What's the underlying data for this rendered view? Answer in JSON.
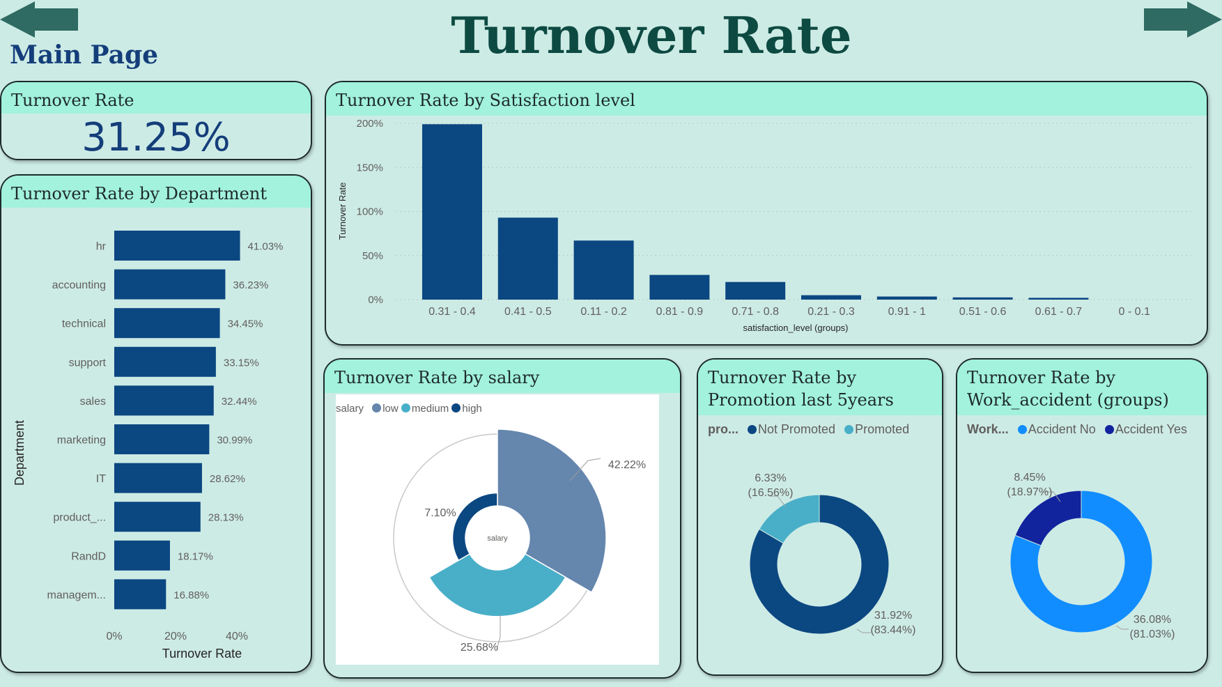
{
  "page": {
    "title": "Turnover Rate",
    "main_link": "Main Page"
  },
  "colors": {
    "background": "#cdebe5",
    "header": "#a2f2dd",
    "navy": "#0b4781",
    "title": "#0d4a42"
  },
  "nav": {
    "back_icon": "left-arrow-icon",
    "forward_icon": "right-arrow-icon"
  },
  "kpi": {
    "title": "Turnover Rate",
    "value": "31.25%"
  },
  "department": {
    "title": "Turnover Rate by Department",
    "chart_data": {
      "type": "bar",
      "orientation": "horizontal",
      "categories": [
        "hr",
        "accounting",
        "technical",
        "support",
        "sales",
        "marketing",
        "IT",
        "product_...",
        "RandD",
        "managem..."
      ],
      "values": [
        41.03,
        36.23,
        34.45,
        33.15,
        32.44,
        30.99,
        28.62,
        28.13,
        18.17,
        16.88
      ],
      "labels": [
        "41.03%",
        "36.23%",
        "34.45%",
        "33.15%",
        "32.44%",
        "30.99%",
        "28.62%",
        "28.13%",
        "18.17%",
        "16.88%"
      ],
      "xlabel": "Turnover Rate",
      "ylabel": "Department",
      "xticks": [
        "0%",
        "20%",
        "40%"
      ],
      "xlim": [
        0,
        45
      ],
      "color": "#0b4781"
    }
  },
  "satisfaction": {
    "title": "Turnover Rate by Satisfaction level",
    "chart_data": {
      "type": "bar",
      "categories": [
        "0.31 - 0.4",
        "0.41 - 0.5",
        "0.11 - 0.2",
        "0.81 - 0.9",
        "0.71 - 0.8",
        "0.21 - 0.3",
        "0.91 - 1",
        "0.51 - 0.6",
        "0.61 - 0.7",
        "0 - 0.1"
      ],
      "values": [
        199,
        93,
        67,
        28,
        20,
        5,
        3.5,
        2.5,
        2,
        0
      ],
      "xlabel": "satisfaction_level (groups)",
      "ylabel": "Turnover Rate",
      "yticks": [
        "200%",
        "150%",
        "100%",
        "50%",
        "0%"
      ],
      "ylim": [
        0,
        200
      ],
      "grid": true,
      "color": "#0b4781"
    }
  },
  "salary": {
    "title": "Turnover Rate by salary",
    "chart_data": {
      "type": "pie",
      "variant": "rose",
      "center_label": "salary",
      "legend_title": "salary",
      "legend_position": "top-left",
      "slices": [
        {
          "name": "low",
          "value": 42.22,
          "label": "42.22%",
          "color": "#6586ad"
        },
        {
          "name": "medium",
          "value": 25.68,
          "label": "25.68%",
          "color": "#49afc8"
        },
        {
          "name": "high",
          "value": 7.1,
          "label": "7.10%",
          "color": "#0b4781"
        }
      ]
    }
  },
  "promotion": {
    "title": "Turnover Rate by Promotion last 5years",
    "chart_data": {
      "type": "pie",
      "variant": "donut",
      "legend_title": "pro...",
      "legend_position": "top-left",
      "slices": [
        {
          "name": "Not Promoted",
          "value": 31.92,
          "label": "31.92%",
          "sub": "(83.44%)",
          "color": "#0b4781"
        },
        {
          "name": "Promoted",
          "value": 6.33,
          "label": "6.33%",
          "sub": "(16.56%)",
          "color": "#49afc8"
        }
      ]
    }
  },
  "accident": {
    "title": "Turnover Rate by Work_accident (groups)",
    "chart_data": {
      "type": "pie",
      "variant": "donut",
      "legend_title": "Work...",
      "legend_position": "top-left",
      "slices": [
        {
          "name": "Accident No",
          "value": 36.08,
          "label": "36.08%",
          "sub": "(81.03%)",
          "color": "#118dff"
        },
        {
          "name": "Accident Yes",
          "value": 8.45,
          "label": "8.45%",
          "sub": "(18.97%)",
          "color": "#12239e"
        }
      ]
    }
  }
}
